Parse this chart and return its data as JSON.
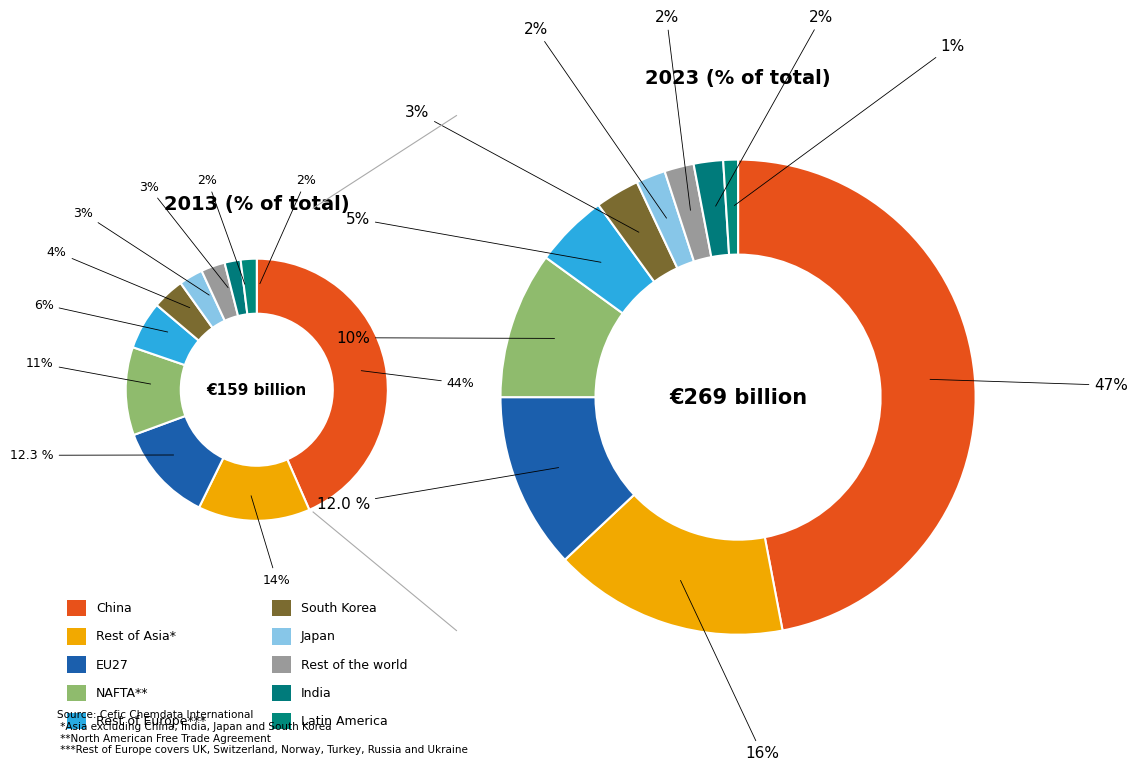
{
  "chart_title_2013": "2013 (% of total)",
  "chart_title_2023": "2023 (% of total)",
  "center_text_2013": "€159 billion",
  "center_text_2023": "€269 billion",
  "categories": [
    "China",
    "Rest of Asia*",
    "EU27",
    "NAFTA**",
    "Rest of Europe***",
    "South Korea",
    "Japan",
    "Rest of the world",
    "India",
    "Latin America"
  ],
  "colors": [
    "#E8511A",
    "#F2A900",
    "#1B5FAD",
    "#8FBB6D",
    "#29ABE2",
    "#7B6B30",
    "#87C6E8",
    "#9A9A9A",
    "#007B7B",
    "#00897B"
  ],
  "values_2013": [
    44,
    14,
    12.3,
    11,
    6,
    4,
    3,
    3,
    2,
    2
  ],
  "values_2023": [
    47,
    16,
    12.0,
    10,
    5,
    3,
    2,
    2,
    2,
    1
  ],
  "source_text": "Source: Cefic Chemdata International\n *Asia excluding China, India, Japan and South Korea\n **North American Free Trade Agreement\n ***Rest of Europe covers UK, Switzerland, Norway, Turkey, Russia and Ukraine",
  "background_color": "#FFFFFF"
}
